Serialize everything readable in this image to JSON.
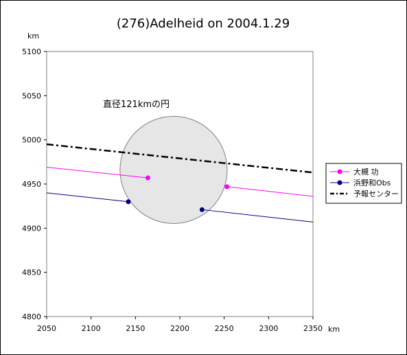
{
  "chart_data": {
    "type": "scatter",
    "title": "(276)Adelheid on 2004.1.29",
    "xlabel": "km",
    "ylabel": "km",
    "xlim": [
      2050,
      2350
    ],
    "ylim": [
      4800,
      5100
    ],
    "x_ticks": [
      2050,
      2100,
      2150,
      2200,
      2250,
      2300,
      2350
    ],
    "y_ticks": [
      4800,
      4850,
      4900,
      4950,
      5000,
      5050,
      5100
    ],
    "grid": false,
    "legend_position": "right",
    "circle": {
      "label": "直径121kmの円",
      "center": [
        2193,
        4966
      ],
      "diameter": 121,
      "fill": "#e6e6e6",
      "stroke": "#808080"
    },
    "series": [
      {
        "name": "大槻 功",
        "color": "#ff00ff",
        "style": "solid",
        "segments": [
          {
            "x": [
              2050,
              2164
            ],
            "y": [
              4969,
              4957
            ]
          },
          {
            "x": [
              2253,
              2350
            ],
            "y": [
              4947,
              4936
            ]
          }
        ],
        "points": [
          {
            "x": 2164,
            "y": 4957
          },
          {
            "x": 2253,
            "y": 4947
          }
        ]
      },
      {
        "name": "浜野和Obs",
        "color": "#000080",
        "style": "solid",
        "segments": [
          {
            "x": [
              2050,
              2142
            ],
            "y": [
              4940,
              4930
            ]
          },
          {
            "x": [
              2225,
              2350
            ],
            "y": [
              4921,
              4907
            ]
          }
        ],
        "points": [
          {
            "x": 2142,
            "y": 4930
          },
          {
            "x": 2225,
            "y": 4921
          }
        ]
      },
      {
        "name": "予報センター",
        "color": "#000000",
        "style": "dashdot",
        "segments": [
          {
            "x": [
              2050,
              2350
            ],
            "y": [
              4995,
              4963
            ]
          }
        ],
        "points": []
      }
    ]
  }
}
